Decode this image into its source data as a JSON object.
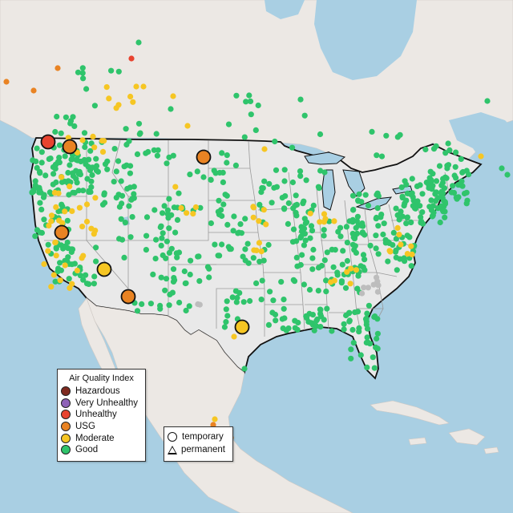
{
  "map": {
    "description_colors": {
      "water": "#a9cfe3",
      "land": "#ece8e4",
      "us_land": "#e9e9e9",
      "border": "#111111",
      "state_lines": "#9a9a9a"
    },
    "marker_colors": {
      "Hazardous": "#7e2a1f",
      "Very Unhealthy": "#8e63b8",
      "Unhealthy": "#e8432f",
      "USG": "#e98323",
      "Moderate": "#f6c623",
      "Good": "#2fc46b",
      "Unknown": "#bdbdbd"
    }
  },
  "aqi_legend": {
    "title": "Air Quality Index",
    "items": [
      {
        "label": "Hazardous",
        "color": "#7e2a1f"
      },
      {
        "label": "Very Unhealthy",
        "color": "#8e63b8"
      },
      {
        "label": "Unhealthy",
        "color": "#e8432f"
      },
      {
        "label": "USG",
        "color": "#e98323"
      },
      {
        "label": "Moderate",
        "color": "#f6c623"
      },
      {
        "label": "Good",
        "color": "#2fc46b"
      }
    ]
  },
  "type_legend": {
    "items": [
      {
        "label": "temporary",
        "shape": "circle"
      },
      {
        "label": "permanent",
        "shape": "triangle"
      }
    ]
  }
}
